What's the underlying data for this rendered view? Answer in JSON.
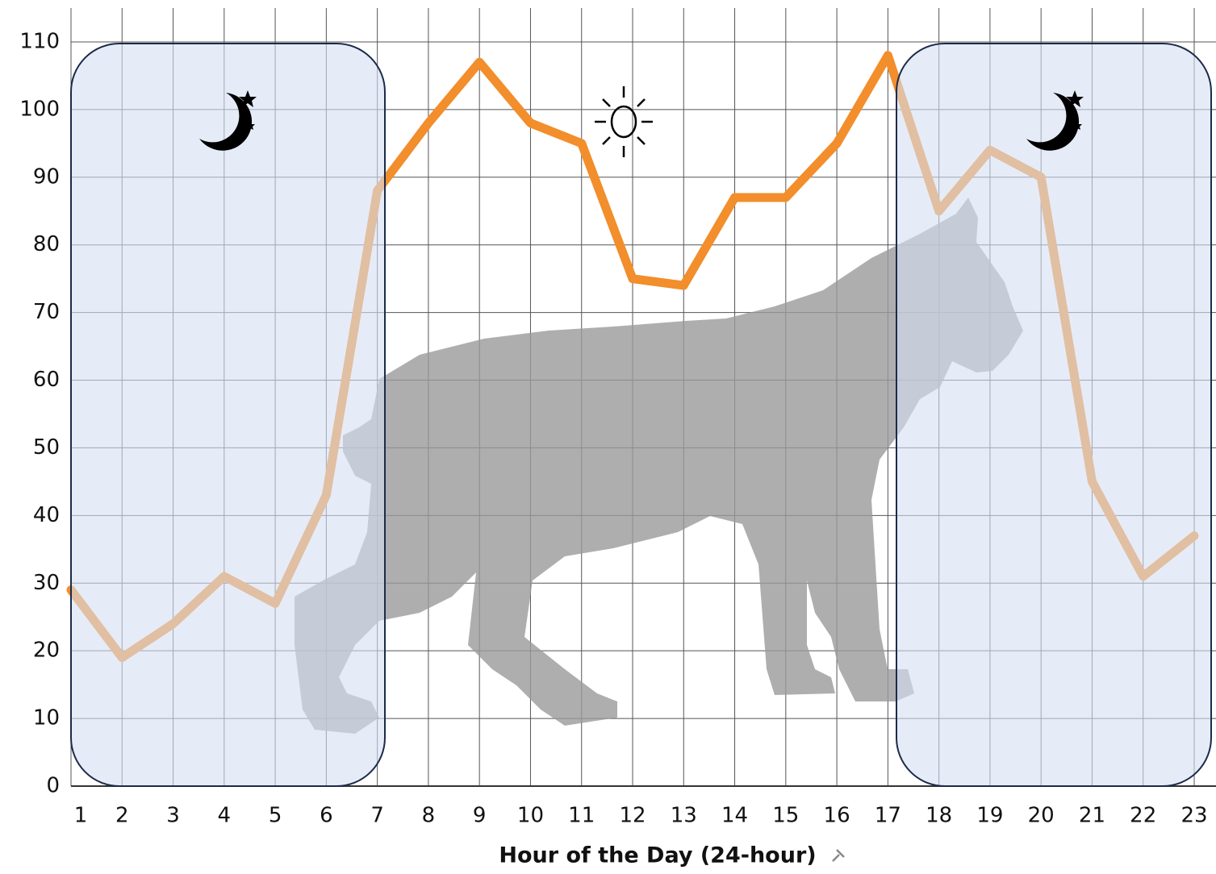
{
  "chart_data": {
    "type": "line",
    "x_label": "Hour of the Day (24-hour)",
    "x": [
      1,
      2,
      3,
      4,
      5,
      6,
      7,
      8,
      9,
      10,
      11,
      12,
      13,
      14,
      15,
      16,
      17,
      18,
      19,
      20,
      21,
      22,
      23
    ],
    "series": [
      {
        "color": "#f28e2b",
        "values": [
          29,
          19,
          24,
          31,
          27,
          43,
          88,
          98,
          107,
          98,
          95,
          75,
          74,
          87,
          87,
          95,
          108,
          85,
          94,
          90,
          45,
          31,
          37
        ]
      }
    ],
    "xlim": [
      1,
      23
    ],
    "xticks": [
      1,
      2,
      3,
      4,
      5,
      6,
      7,
      8,
      9,
      10,
      11,
      12,
      13,
      14,
      15,
      16,
      17,
      18,
      19,
      20,
      21,
      22,
      23
    ],
    "ylim": [
      0,
      115
    ],
    "yticks": [
      0,
      10,
      20,
      30,
      40,
      50,
      60,
      70,
      80,
      90,
      100,
      110
    ],
    "grid": true
  }
}
